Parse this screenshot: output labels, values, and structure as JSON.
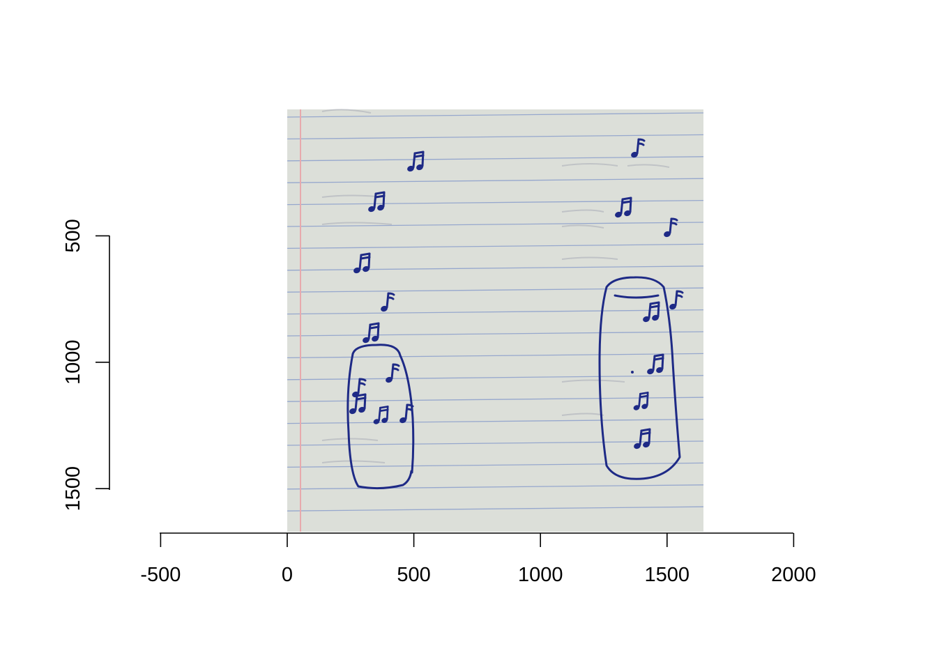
{
  "plot": {
    "x_axis": {
      "ticks": [
        -500,
        0,
        500,
        1000,
        1500,
        2000
      ]
    },
    "y_axis": {
      "ticks": [
        500,
        1000,
        1500
      ]
    },
    "image_extent": {
      "x": [
        0,
        1650
      ],
      "y": [
        0,
        1665
      ]
    }
  },
  "colors": {
    "paper": "#dcdfd9",
    "rule_line": "#7f95c9",
    "margin_line": "#e7a9ad",
    "ink": "#1e2a86"
  },
  "drawing": {
    "subject": "hand-drawn sketch on lined notebook paper",
    "objects": [
      {
        "name": "short speaker (left)",
        "notes": 11
      },
      {
        "name": "tall speaker (right)",
        "notes": 9
      }
    ]
  }
}
